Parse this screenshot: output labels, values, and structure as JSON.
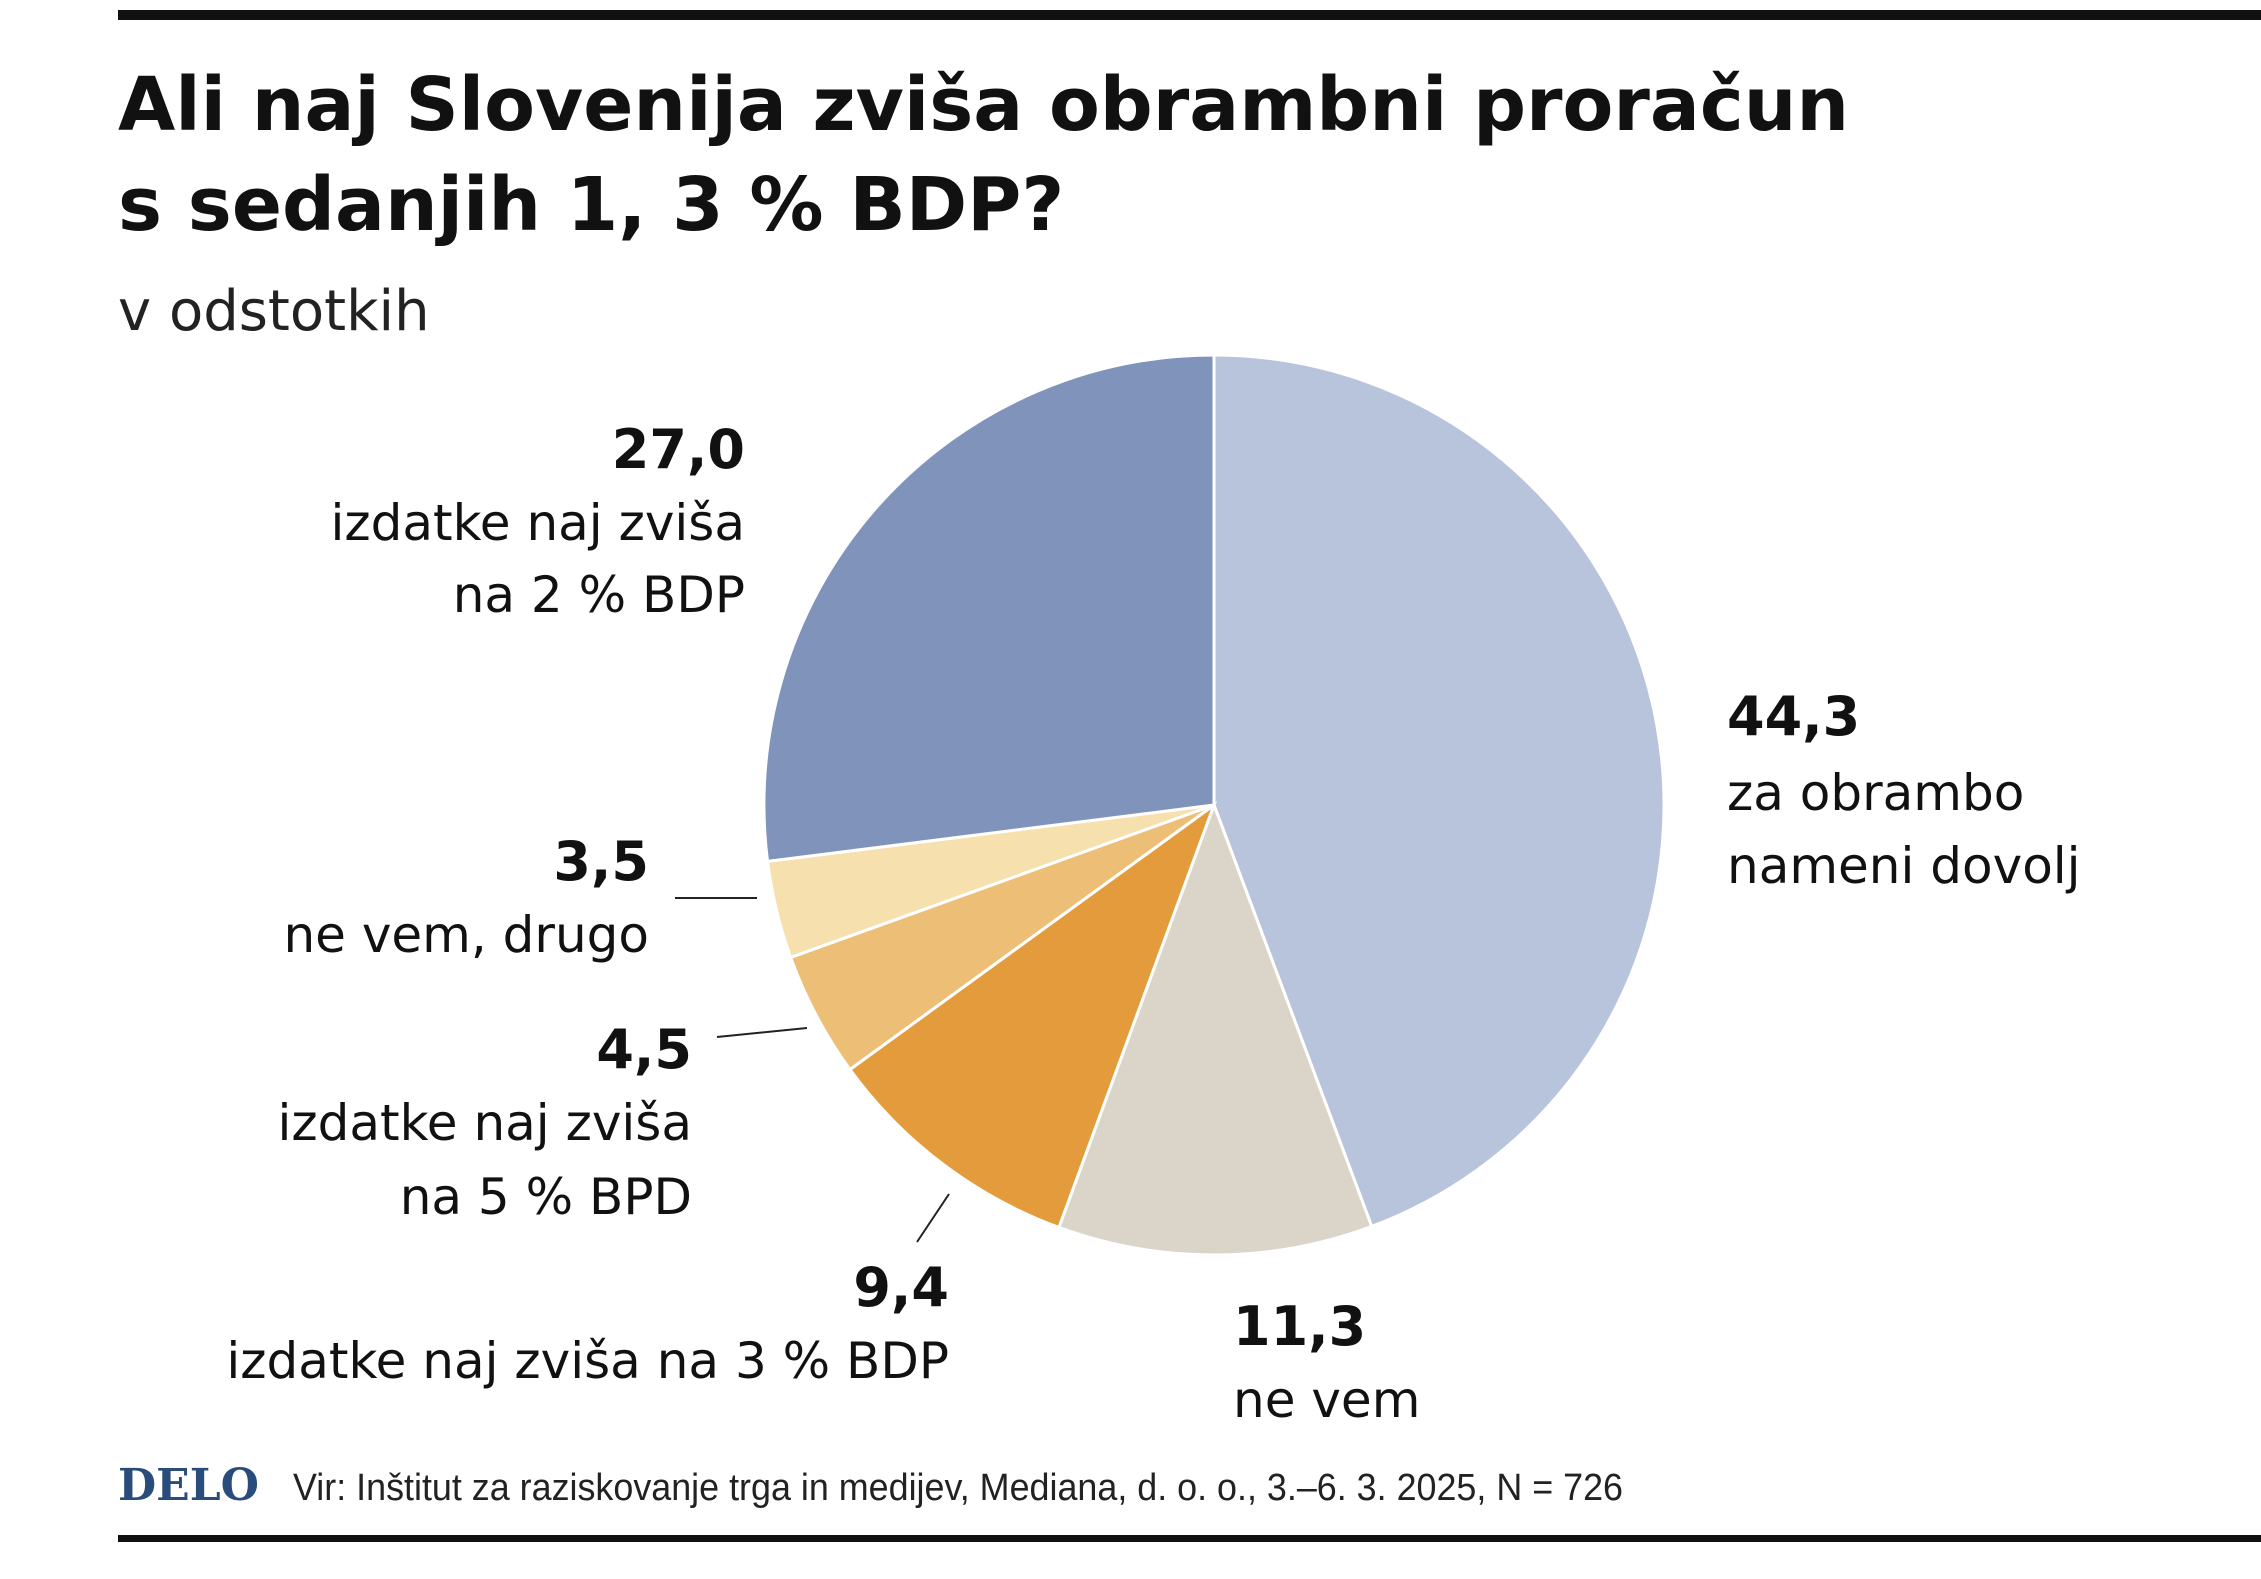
{
  "chart_data": {
    "type": "pie",
    "title": "Ali naj Slovenija zviša obrambni proračun s sedanjih 1, 3 % BDP?",
    "title_lines": [
      "Ali naj Slovenija zviša obrambni proračun",
      "s sedanjih 1, 3 % BDP?"
    ],
    "subtitle": "v odstotkih",
    "start": "top",
    "direction": "clockwise",
    "slices": [
      {
        "value": 44.3,
        "value_label": "44,3",
        "label_lines": [
          "za obrambo",
          "nameni dovolj"
        ],
        "color": "#b8c3dc"
      },
      {
        "value": 11.3,
        "value_label": "11,3",
        "label_lines": [
          "ne vem"
        ],
        "color": "#dbd4c9"
      },
      {
        "value": 9.4,
        "value_label": "9,4",
        "label_lines": [
          "izdatke naj zviša na 3 % BDP"
        ],
        "color": "#e39b3b"
      },
      {
        "value": 4.5,
        "value_label": "4,5",
        "label_lines": [
          "izdatke naj zviša",
          "na 5 % BPD"
        ],
        "color": "#edbf76"
      },
      {
        "value": 3.5,
        "value_label": "3,5",
        "label_lines": [
          "ne vem, drugo"
        ],
        "color": "#f5e0ae"
      },
      {
        "value": 27.0,
        "value_label": "27,0",
        "label_lines": [
          "izdatke naj zviša",
          "na 2 % BDP"
        ],
        "color": "#7f93bb"
      }
    ]
  },
  "footer": {
    "logo": "DELO",
    "source": "Vir: Inštitut za raziskovanje trga in medijev, Mediana, d. o. o., 3.–6. 3. 2025, N = 726"
  }
}
